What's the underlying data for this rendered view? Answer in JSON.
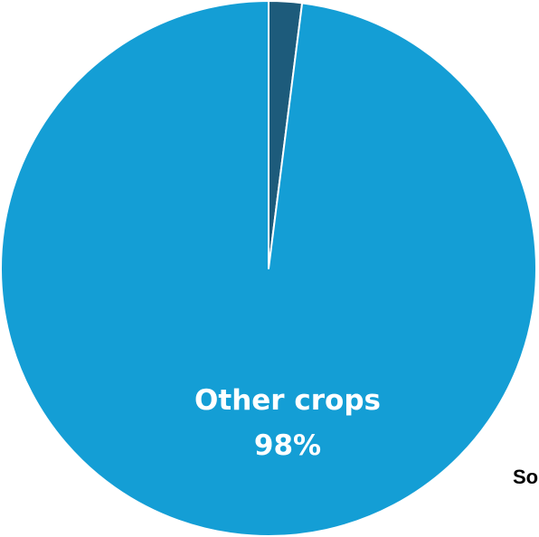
{
  "chart_data": {
    "type": "pie",
    "slices": [
      {
        "label": "",
        "value": 2,
        "color": "#1d5b7b"
      },
      {
        "label": "Other crops",
        "value": 98,
        "value_label": "98%",
        "color": "#149ed5"
      }
    ]
  },
  "source_note": "So"
}
